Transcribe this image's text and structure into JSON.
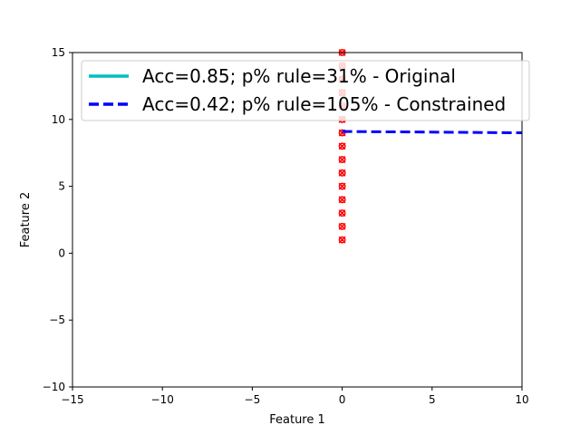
{
  "chart_data": {
    "type": "scatter",
    "title": "",
    "xlabel": "Feature 1",
    "ylabel": "Feature 2",
    "xlim": [
      -15,
      10
    ],
    "ylim": [
      -10,
      15
    ],
    "xticks": [
      -15,
      -10,
      -5,
      0,
      5,
      10
    ],
    "yticks": [
      -10,
      -5,
      0,
      5,
      10,
      15
    ],
    "xtick_labels": [
      "−15",
      "−10",
      "−5",
      "0",
      "5",
      "10"
    ],
    "ytick_labels": [
      "−10",
      "−5",
      "0",
      "5",
      "10",
      "15"
    ],
    "grid": false,
    "legend_position": "top-right",
    "series": [
      {
        "name": "Acc=0.85; p% rule=31% - Original",
        "kind": "line",
        "style": "solid",
        "color": "#00bfbf",
        "x": [
          0,
          0
        ],
        "y": [
          15,
          15
        ]
      },
      {
        "name": "Acc=0.42; p% rule=105% - Constrained",
        "kind": "line",
        "style": "dashed",
        "color": "#0000ff",
        "x": [
          0,
          10
        ],
        "y": [
          9.1,
          9.0
        ]
      },
      {
        "kind": "points",
        "color": "#ff0000",
        "marker": "x",
        "x": [
          0,
          0,
          0,
          0,
          0,
          0,
          0,
          0,
          0,
          0,
          0,
          0,
          0,
          0,
          0
        ],
        "y": [
          1,
          2,
          3,
          4,
          5,
          6,
          7,
          8,
          9,
          10,
          11,
          12,
          13,
          14,
          15
        ]
      },
      {
        "kind": "points",
        "color": "#ff0000",
        "marker": "o",
        "x": [
          0,
          0,
          0,
          0,
          0,
          0,
          0,
          0,
          0,
          0,
          0,
          0,
          0,
          0,
          0
        ],
        "y": [
          1,
          2,
          3,
          4,
          5,
          6,
          7,
          8,
          9,
          10,
          11,
          12,
          13,
          14,
          15
        ]
      }
    ]
  }
}
